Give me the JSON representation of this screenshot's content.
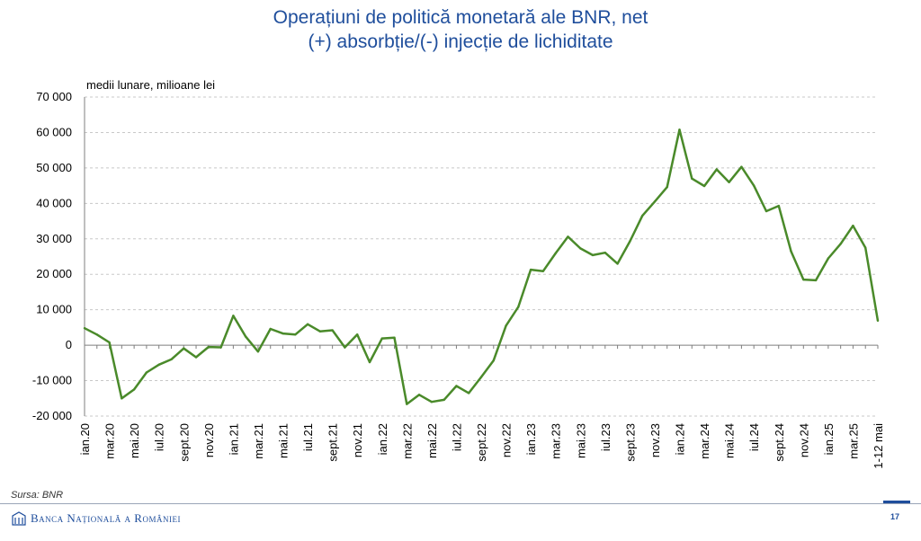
{
  "header": {
    "title_line1": "Operațiuni de politică monetară ale BNR, net",
    "title_line2": "(+) absorbție/(-) injecție de lichiditate"
  },
  "footer": {
    "source": "Sursa: BNR",
    "logo_text": "Banca Națională a României",
    "page_number": "17"
  },
  "colors": {
    "line": "#4a8a2a",
    "title": "#1f4e9c",
    "grid": "#c8c8c8"
  },
  "chart_data": {
    "type": "line",
    "title": "Operațiuni de politică monetară ale BNR, net (+) absorbție/(-) injecție de lichiditate",
    "ylabel": "medii lunare, milioane lei",
    "ylim": [
      -20000,
      70000
    ],
    "yticks": [
      -20000,
      -10000,
      0,
      10000,
      20000,
      30000,
      40000,
      50000,
      60000,
      70000
    ],
    "ytick_labels": [
      "-20 000",
      "-10 000",
      "0",
      "10 000",
      "20 000",
      "30 000",
      "40 000",
      "50 000",
      "60 000",
      "70 000"
    ],
    "grid": true,
    "x_labels": [
      "ian.20",
      "mar.20",
      "mai.20",
      "iul.20",
      "sept.20",
      "nov.20",
      "ian.21",
      "mar.21",
      "mai.21",
      "iul.21",
      "sept.21",
      "nov.21",
      "ian.22",
      "mar.22",
      "mai.22",
      "iul.22",
      "sept.22",
      "nov.22",
      "ian.23",
      "mar.23",
      "mai.23",
      "iul.23",
      "sept.23",
      "nov.23",
      "ian.24",
      "mar.24",
      "mai.24",
      "iul.24",
      "sept.24",
      "nov.24",
      "ian.25",
      "mar.25",
      "1-12 mai"
    ],
    "x": [
      "ian.20",
      "feb.20",
      "mar.20",
      "apr.20",
      "mai.20",
      "iun.20",
      "iul.20",
      "aug.20",
      "sept.20",
      "oct.20",
      "nov.20",
      "dec.20",
      "ian.21",
      "feb.21",
      "mar.21",
      "apr.21",
      "mai.21",
      "iun.21",
      "iul.21",
      "aug.21",
      "sept.21",
      "oct.21",
      "nov.21",
      "dec.21",
      "ian.22",
      "feb.22",
      "mar.22",
      "apr.22",
      "mai.22",
      "iun.22",
      "iul.22",
      "aug.22",
      "sept.22",
      "oct.22",
      "nov.22",
      "dec.22",
      "ian.23",
      "feb.23",
      "mar.23",
      "apr.23",
      "mai.23",
      "iun.23",
      "iul.23",
      "aug.23",
      "sept.23",
      "oct.23",
      "nov.23",
      "dec.23",
      "ian.24",
      "feb.24",
      "mar.24",
      "apr.24",
      "mai.24",
      "iun.24",
      "iul.24",
      "aug.24",
      "sept.24",
      "oct.24",
      "nov.24",
      "dec.24",
      "ian.25",
      "feb.25",
      "mar.25",
      "apr.25",
      "1-12 mai"
    ],
    "values": [
      4800,
      3000,
      800,
      -15000,
      -12500,
      -7700,
      -5500,
      -4000,
      -900,
      -3400,
      -500,
      -600,
      8300,
      2400,
      -1800,
      4600,
      3300,
      3000,
      5900,
      3900,
      4200,
      -600,
      3000,
      -4800,
      1900,
      2100,
      -16600,
      -14000,
      -16000,
      -15400,
      -11500,
      -13500,
      -9000,
      -4300,
      5500,
      10800,
      21300,
      20900,
      25900,
      30600,
      27300,
      25400,
      26100,
      23000,
      29300,
      36500,
      40500,
      44600,
      60800,
      47000,
      44900,
      49600,
      46000,
      50300,
      45000,
      37800,
      39300,
      26500,
      18500,
      18300,
      24500,
      28600,
      33700,
      27500,
      6900
    ]
  }
}
